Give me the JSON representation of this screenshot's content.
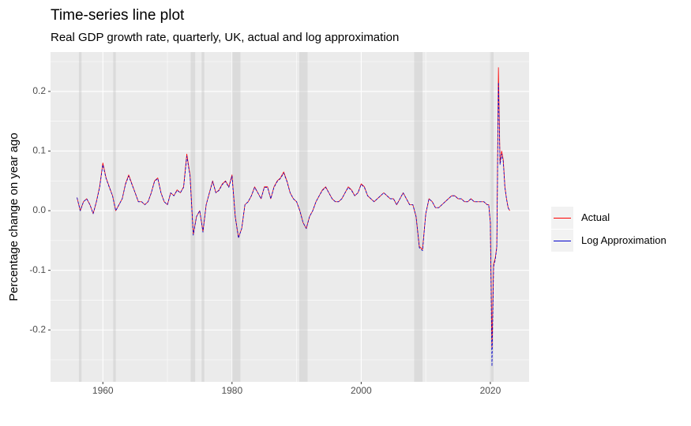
{
  "chart_data": {
    "type": "line",
    "title": "Time-series line plot",
    "subtitle": "Real GDP growth rate, quarterly, UK, actual and log approximation",
    "y_label": "Percentage change on year ago",
    "xlim": [
      1951.9,
      2026.0
    ],
    "ylim": [
      -0.287,
      0.266
    ],
    "xticks": [
      1960,
      1980,
      2000,
      2020
    ],
    "xminor": [
      1970,
      1990,
      2010
    ],
    "yticks": [
      -0.2,
      -0.1,
      {
        "value": 0,
        "label": "0.0"
      },
      0.1,
      0.2
    ],
    "yminor": [
      -0.25,
      -0.15,
      -0.05,
      0.05,
      0.15,
      0.25
    ],
    "grid": true,
    "legend": "right",
    "shaded_periods": [
      [
        1956.3,
        1956.7
      ],
      [
        1961.6,
        1962.0
      ],
      [
        1973.6,
        1974.3
      ],
      [
        1975.3,
        1975.7
      ],
      [
        1980.0,
        1981.3
      ],
      [
        1990.4,
        1991.7
      ],
      [
        2008.2,
        2009.5
      ],
      [
        2019.9,
        2020.5
      ]
    ],
    "x": [
      1956,
      1956.5,
      1957,
      1957.5,
      1958,
      1958.5,
      1959,
      1959.5,
      1960,
      1960.5,
      1961,
      1961.5,
      1962,
      1962.5,
      1963,
      1963.5,
      1964,
      1964.5,
      1965,
      1965.5,
      1966,
      1966.5,
      1967,
      1967.5,
      1968,
      1968.5,
      1969,
      1969.5,
      1970,
      1970.5,
      1971,
      1971.5,
      1972,
      1972.5,
      1973,
      1973.5,
      1974,
      1974.5,
      1975,
      1975.5,
      1976,
      1976.5,
      1977,
      1977.5,
      1978,
      1978.5,
      1979,
      1979.5,
      1980,
      1980.5,
      1981,
      1981.5,
      1982,
      1982.5,
      1983,
      1983.5,
      1984,
      1984.5,
      1985,
      1985.5,
      1986,
      1986.5,
      1987,
      1987.5,
      1988,
      1988.5,
      1989,
      1989.5,
      1990,
      1990.5,
      1991,
      1991.5,
      1992,
      1992.5,
      1993,
      1993.5,
      1994,
      1994.5,
      1995,
      1995.5,
      1996,
      1996.5,
      1997,
      1997.5,
      1998,
      1998.5,
      1999,
      1999.5,
      2000,
      2000.5,
      2001,
      2001.5,
      2002,
      2002.5,
      2003,
      2003.5,
      2004,
      2004.5,
      2005,
      2005.5,
      2006,
      2006.5,
      2007,
      2007.5,
      2008,
      2008.5,
      2009,
      2009.5,
      2010,
      2010.5,
      2011,
      2011.5,
      2012,
      2012.5,
      2013,
      2013.5,
      2014,
      2014.5,
      2015,
      2015.5,
      2016,
      2016.5,
      2017,
      2017.5,
      2018,
      2018.5,
      2019,
      2019.5,
      2019.75,
      2020,
      2020.25,
      2020.5,
      2020.75,
      2021,
      2021.25,
      2021.5,
      2021.75,
      2022,
      2022.25,
      2022.5,
      2022.75,
      2023
    ],
    "series": [
      {
        "name": "Actual",
        "color": "#ff0000",
        "dash": false,
        "values": [
          0.022,
          0,
          0.015,
          0.02,
          0.01,
          -0.005,
          0.015,
          0.04,
          0.08,
          0.055,
          0.04,
          0.025,
          0,
          0.01,
          0.02,
          0.045,
          0.06,
          0.045,
          0.03,
          0.015,
          0.015,
          0.01,
          0.015,
          0.03,
          0.05,
          0.055,
          0.03,
          0.015,
          0.01,
          0.03,
          0.025,
          0.035,
          0.03,
          0.04,
          0.095,
          0.06,
          -0.04,
          -0.01,
          0,
          -0.035,
          0.01,
          0.03,
          0.05,
          0.03,
          0.035,
          0.045,
          0.05,
          0.04,
          0.06,
          -0.01,
          -0.045,
          -0.03,
          0.01,
          0.015,
          0.025,
          0.04,
          0.03,
          0.02,
          0.04,
          0.04,
          0.02,
          0.04,
          0.05,
          0.055,
          0.065,
          0.05,
          0.03,
          0.02,
          0.015,
          0,
          -0.02,
          -0.03,
          -0.01,
          0,
          0.015,
          0.025,
          0.035,
          0.04,
          0.03,
          0.02,
          0.015,
          0.015,
          0.02,
          0.03,
          0.04,
          0.035,
          0.025,
          0.03,
          0.045,
          0.04,
          0.025,
          0.02,
          0.015,
          0.02,
          0.025,
          0.03,
          0.025,
          0.02,
          0.02,
          0.01,
          0.02,
          0.03,
          0.02,
          0.01,
          0.01,
          -0.01,
          -0.06,
          -0.065,
          -0.005,
          0.02,
          0.015,
          0.005,
          0.005,
          0.01,
          0.015,
          0.02,
          0.025,
          0.025,
          0.02,
          0.02,
          0.015,
          0.015,
          0.02,
          0.015,
          0.015,
          0.015,
          0.015,
          0.01,
          0.01,
          -0.02,
          -0.23,
          -0.09,
          -0.08,
          -0.06,
          0.24,
          0.08,
          0.1,
          0.085,
          0.04,
          0.02,
          0.005,
          0
        ]
      },
      {
        "name": "Log Approximation",
        "color": "#0000cc",
        "dash": true,
        "values": [
          0.022,
          0,
          0.015,
          0.02,
          0.01,
          -0.005,
          0.015,
          0.039,
          0.077,
          0.054,
          0.039,
          0.025,
          0,
          0.01,
          0.02,
          0.044,
          0.058,
          0.044,
          0.03,
          0.015,
          0.015,
          0.01,
          0.015,
          0.03,
          0.049,
          0.054,
          0.03,
          0.015,
          0.01,
          0.03,
          0.025,
          0.034,
          0.03,
          0.039,
          0.091,
          0.058,
          -0.041,
          -0.01,
          0,
          -0.036,
          0.01,
          0.03,
          0.049,
          0.03,
          0.034,
          0.044,
          0.049,
          0.039,
          0.058,
          -0.01,
          -0.046,
          -0.03,
          0.01,
          0.015,
          0.025,
          0.039,
          0.03,
          0.02,
          0.039,
          0.039,
          0.02,
          0.039,
          0.049,
          0.054,
          0.063,
          0.049,
          0.03,
          0.02,
          0.015,
          0,
          -0.02,
          -0.03,
          -0.01,
          0,
          0.015,
          0.025,
          0.034,
          0.039,
          0.03,
          0.02,
          0.015,
          0.015,
          0.02,
          0.03,
          0.039,
          0.034,
          0.025,
          0.03,
          0.044,
          0.039,
          0.025,
          0.02,
          0.015,
          0.02,
          0.025,
          0.03,
          0.025,
          0.02,
          0.02,
          0.01,
          0.02,
          0.03,
          0.02,
          0.01,
          0.01,
          -0.01,
          -0.062,
          -0.067,
          -0.005,
          0.02,
          0.015,
          0.005,
          0.005,
          0.01,
          0.015,
          0.02,
          0.025,
          0.025,
          0.02,
          0.02,
          0.015,
          0.015,
          0.02,
          0.015,
          0.015,
          0.015,
          0.015,
          0.01,
          0.01,
          -0.02,
          -0.261,
          -0.094,
          -0.083,
          -0.062,
          0.215,
          0.077,
          0.095,
          0.082,
          0.039,
          0.02,
          0.005,
          0
        ]
      }
    ]
  }
}
